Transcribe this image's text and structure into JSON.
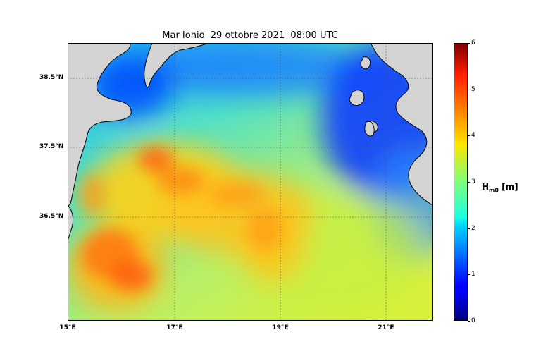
{
  "map": {
    "title": "Mar Ionio  29 ottobre 2021  08:00 UTC",
    "lat_ticks": [
      "38.5°N",
      "37.5°N",
      "36.5°N"
    ],
    "lon_ticks": [
      "15°E",
      "17°E",
      "19°E",
      "21°E"
    ],
    "colorbar": {
      "min": 0,
      "max": 6,
      "ticks": [
        "0",
        "1",
        "2",
        "3",
        "4",
        "5",
        "6"
      ],
      "label_main": "H",
      "label_sub": "m0",
      "label_unit": " [m]"
    },
    "colors": {
      "land": "#d3d3d3",
      "coast": "#000000",
      "grid": "#555555"
    }
  }
}
